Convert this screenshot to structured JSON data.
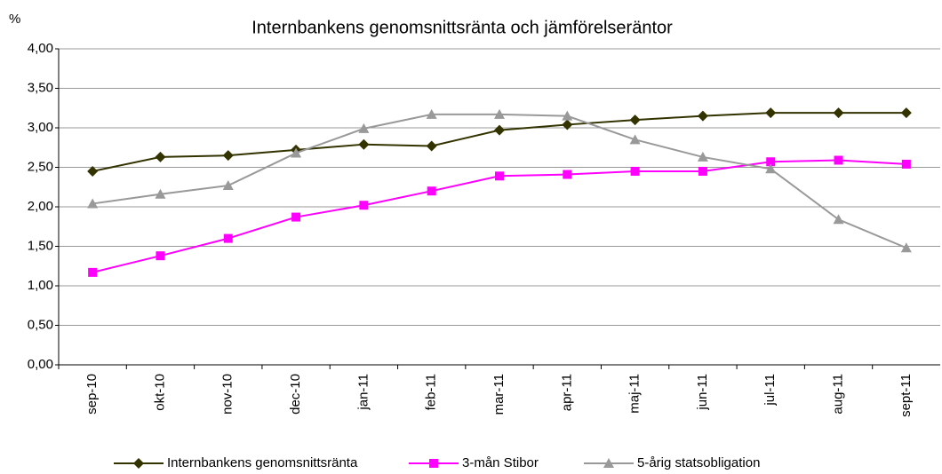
{
  "chart_data": {
    "type": "line",
    "title": "Internbankens genomsnittsränta och jämförelseräntor",
    "y_unit": "%",
    "categories": [
      "sep-10",
      "okt-10",
      "nov-10",
      "dec-10",
      "jan-11",
      "feb-11",
      "mar-11",
      "apr-11",
      "maj-11",
      "jun-11",
      "jul-11",
      "aug-11",
      "sept-11"
    ],
    "series": [
      {
        "name": "Internbankens genomsnittsränta",
        "color": "#333300",
        "marker": "diamond",
        "values": [
          2.45,
          2.63,
          2.65,
          2.72,
          2.79,
          2.77,
          2.97,
          3.04,
          3.1,
          3.15,
          3.19,
          3.19,
          3.19
        ]
      },
      {
        "name": "3-mån Stibor",
        "color": "#ff00ff",
        "marker": "square",
        "values": [
          1.17,
          1.38,
          1.6,
          1.87,
          2.02,
          2.2,
          2.39,
          2.41,
          2.45,
          2.45,
          2.57,
          2.59,
          2.54
        ]
      },
      {
        "name": "5-årig statsobligation",
        "color": "#999999",
        "marker": "triangle",
        "values": [
          2.04,
          2.16,
          2.27,
          2.68,
          2.99,
          3.17,
          3.17,
          3.15,
          2.85,
          2.63,
          2.48,
          1.84,
          1.48
        ]
      }
    ],
    "ylim": [
      0,
      4
    ],
    "yticks": [
      {
        "value": 0,
        "label": "0,00"
      },
      {
        "value": 0.5,
        "label": "0,50"
      },
      {
        "value": 1,
        "label": "1,00"
      },
      {
        "value": 1.5,
        "label": "1,50"
      },
      {
        "value": 2,
        "label": "2,00"
      },
      {
        "value": 2.5,
        "label": "2,50"
      },
      {
        "value": 3,
        "label": "3,00"
      },
      {
        "value": 3.5,
        "label": "3,50"
      },
      {
        "value": 4,
        "label": "4,00"
      }
    ],
    "grid": true
  }
}
